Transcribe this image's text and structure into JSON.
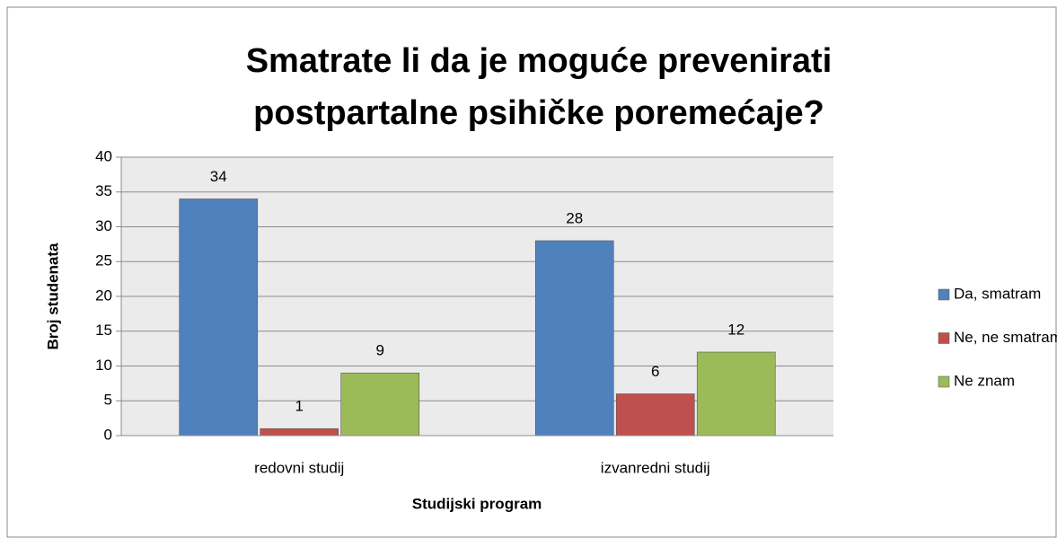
{
  "chart_data": {
    "type": "bar",
    "title": [
      "Smatrate li da je moguće prevenirati",
      "postpartalne psihičke poremećaje?"
    ],
    "categories": [
      "redovni studij",
      "izvanredni studij"
    ],
    "series": [
      {
        "name": "Da, smatram",
        "color": "#4f81bd",
        "values": [
          34,
          28
        ]
      },
      {
        "name": "Ne, ne smatram",
        "color": "#c0504d",
        "values": [
          1,
          6
        ]
      },
      {
        "name": "Ne znam",
        "color": "#9bbb59",
        "values": [
          9,
          12
        ]
      }
    ],
    "ylim": [
      0,
      40
    ],
    "yticks": [
      0,
      5,
      10,
      15,
      20,
      25,
      30,
      35,
      40
    ],
    "x_label": "Studijski program",
    "y_label": "Broj studenata",
    "grid": true,
    "legend": "right"
  }
}
